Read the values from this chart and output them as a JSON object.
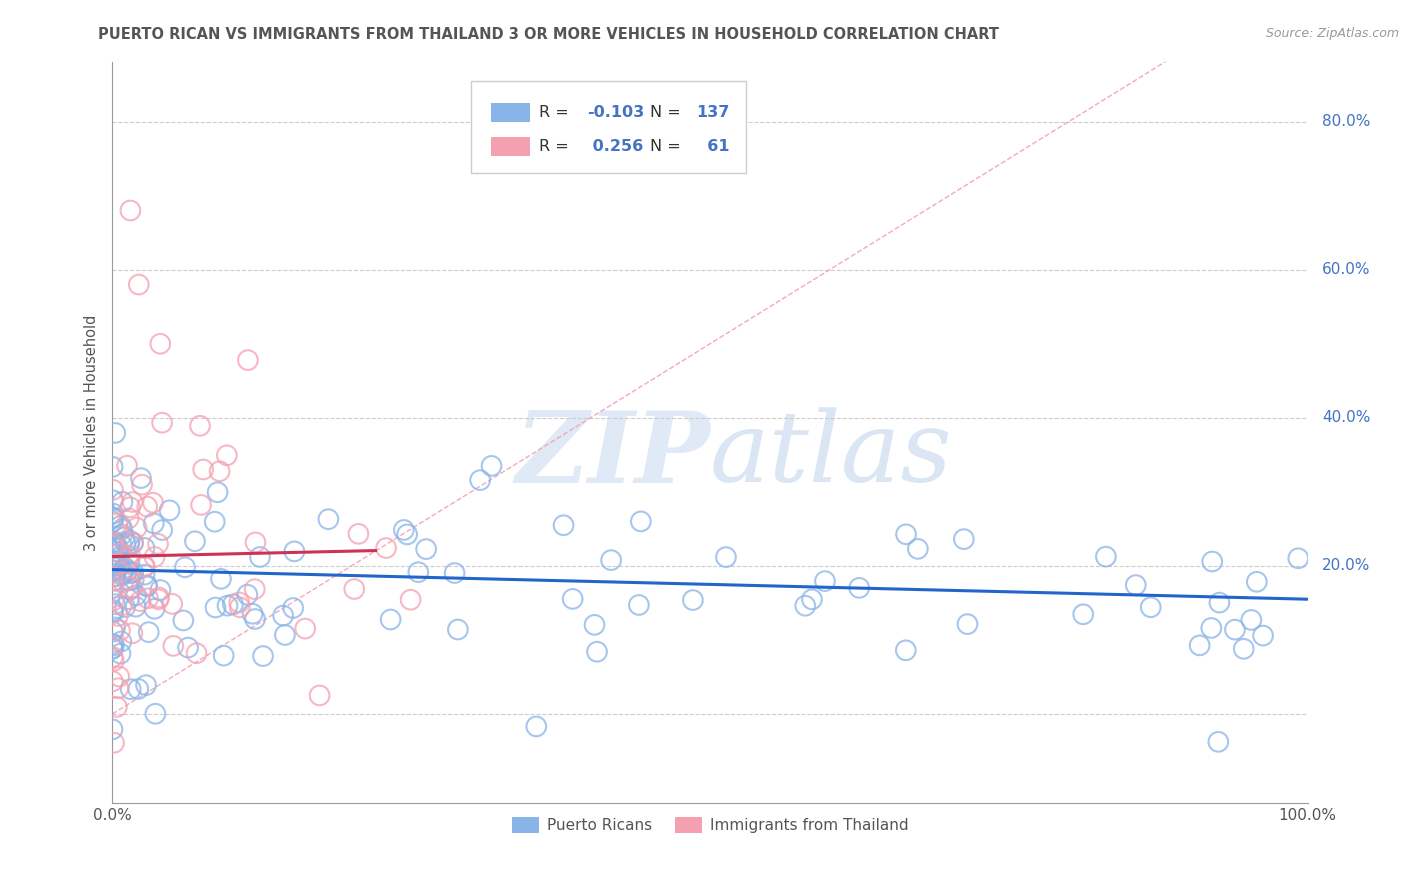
{
  "title": "PUERTO RICAN VS IMMIGRANTS FROM THAILAND 3 OR MORE VEHICLES IN HOUSEHOLD CORRELATION CHART",
  "source": "Source: ZipAtlas.com",
  "legend1_label": "Puerto Ricans",
  "legend2_label": "Immigrants from Thailand",
  "R1": -0.103,
  "N1": 137,
  "R2": 0.256,
  "N2": 61,
  "color1": "#89b4e8",
  "color2": "#f4a0b0",
  "line1_color": "#2266cc",
  "line2_color": "#cc3355",
  "diag_color": "#f4a0b0",
  "watermark_zip": "ZIP",
  "watermark_atlas": "atlas",
  "background_color": "#ffffff",
  "title_color": "#555555",
  "title_fontsize": 10.5,
  "source_color": "#999999",
  "axis_label_color": "#555555",
  "tick_label_color": "#555555",
  "legend_R_color": "#4472c4",
  "grid_color": "#cccccc",
  "ylabel": "3 or more Vehicles in Household",
  "xlim": [
    0,
    1.0
  ],
  "ylim": [
    -0.12,
    0.88
  ],
  "yticks": [
    0.0,
    0.2,
    0.4,
    0.6,
    0.8
  ],
  "ytick_labels": [
    "",
    "20.0%",
    "40.0%",
    "60.0%",
    "80.0%"
  ],
  "xtick_labels": [
    "0.0%",
    "100.0%"
  ]
}
